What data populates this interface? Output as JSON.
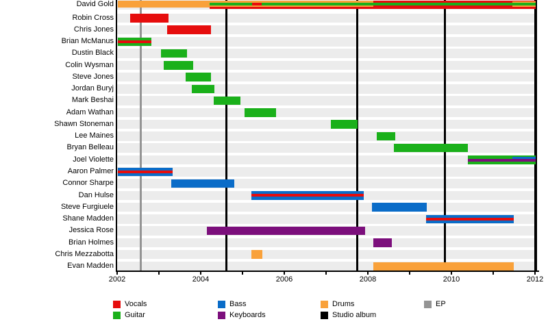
{
  "chart_data": {
    "type": "timeline",
    "title": "Band members timeline (gantt-style, rows = members, bars = tenure by instrument)",
    "x_axis": {
      "start": 2002,
      "end": 2012,
      "tick_interval_years": 1,
      "labeled_ticks": [
        "2002",
        "2004",
        "2006",
        "2008",
        "2010",
        "2012"
      ]
    },
    "colors": {
      "vocals": "#e60d0d",
      "guitar": "#1ab01a",
      "bass": "#0a6cc8",
      "keyboards": "#7c0f7c",
      "drums": "#f9a13a",
      "studio_album": "#000000",
      "ep": "#949494"
    },
    "legend": [
      {
        "label": "Vocals",
        "role": "vocals"
      },
      {
        "label": "Guitar",
        "role": "guitar"
      },
      {
        "label": "Bass",
        "role": "bass"
      },
      {
        "label": "Keyboards",
        "role": "keyboards"
      },
      {
        "label": "Drums",
        "role": "drums"
      },
      {
        "label": "Studio album",
        "role": "studio_album"
      },
      {
        "label": "EP",
        "role": "ep"
      }
    ],
    "releases": [
      {
        "kind": "ep",
        "year": 2002.56
      },
      {
        "kind": "studio_album",
        "year": 2004.61
      },
      {
        "kind": "studio_album",
        "year": 2007.74
      },
      {
        "kind": "studio_album",
        "year": 2009.85
      },
      {
        "kind": "studio_album",
        "year": 2012.02
      }
    ],
    "members": [
      {
        "name": "David Gold",
        "bars": [
          {
            "role": "drums",
            "from": 2002.02,
            "till": 2004.21,
            "layer": "full10"
          },
          {
            "role": "vocals",
            "from": 2004.21,
            "till": 2012.02,
            "layer": "full"
          },
          {
            "role": "drums",
            "from": 2004.21,
            "till": 2008.13,
            "layer": "top"
          },
          {
            "role": "drums",
            "from": 2004.21,
            "till": 2008.13,
            "layer": "bottom"
          },
          {
            "role": "drums",
            "from": 2011.46,
            "till": 2012.02,
            "layer": "top2"
          },
          {
            "role": "drums",
            "from": 2011.46,
            "till": 2012.02,
            "layer": "bottom"
          },
          {
            "role": "guitar",
            "from": 2004.21,
            "till": 2012.02,
            "layer": "mid"
          },
          {
            "role": "vocals",
            "from": 2005.23,
            "till": 2005.46,
            "layer": "mid"
          }
        ]
      },
      {
        "name": "Robin Cross",
        "bars": [
          {
            "role": "vocals",
            "from": 2002.31,
            "till": 2003.23,
            "layer": "full"
          }
        ]
      },
      {
        "name": "Chris Jones",
        "bars": [
          {
            "role": "vocals",
            "from": 2003.2,
            "till": 2004.25,
            "layer": "full"
          }
        ]
      },
      {
        "name": "Brian McManus",
        "bars": [
          {
            "role": "guitar",
            "from": 2002.02,
            "till": 2002.82,
            "layer": "full"
          },
          {
            "role": "vocals",
            "from": 2002.02,
            "till": 2002.82,
            "layer": "stripe"
          }
        ]
      },
      {
        "name": "Dustin Black",
        "bars": [
          {
            "role": "guitar",
            "from": 2003.05,
            "till": 2003.67,
            "layer": "full"
          }
        ]
      },
      {
        "name": "Colin Wysman",
        "bars": [
          {
            "role": "guitar",
            "from": 2003.11,
            "till": 2003.82,
            "layer": "full"
          }
        ]
      },
      {
        "name": "Steve Jones",
        "bars": [
          {
            "role": "guitar",
            "from": 2003.64,
            "till": 2004.25,
            "layer": "full"
          }
        ]
      },
      {
        "name": "Jordan Buryj",
        "bars": [
          {
            "role": "guitar",
            "from": 2003.79,
            "till": 2004.33,
            "layer": "full"
          }
        ]
      },
      {
        "name": "Mark Beshai",
        "bars": [
          {
            "role": "guitar",
            "from": 2004.31,
            "till": 2004.95,
            "layer": "full"
          }
        ]
      },
      {
        "name": "Adam Wathan",
        "bars": [
          {
            "role": "guitar",
            "from": 2005.05,
            "till": 2005.8,
            "layer": "full"
          }
        ]
      },
      {
        "name": "Shawn Stoneman",
        "bars": [
          {
            "role": "guitar",
            "from": 2007.11,
            "till": 2007.76,
            "layer": "full"
          }
        ]
      },
      {
        "name": "Lee Maines",
        "bars": [
          {
            "role": "guitar",
            "from": 2008.21,
            "till": 2008.66,
            "layer": "full"
          }
        ]
      },
      {
        "name": "Bryan Belleau",
        "bars": [
          {
            "role": "guitar",
            "from": 2008.62,
            "till": 2010.39,
            "layer": "full"
          }
        ]
      },
      {
        "name": "Joel Violette",
        "bars": [
          {
            "role": "guitar",
            "from": 2010.39,
            "till": 2012.02,
            "layer": "full"
          },
          {
            "role": "keyboards",
            "from": 2010.39,
            "till": 2012.02,
            "layer": "low"
          },
          {
            "role": "bass",
            "from": 2011.46,
            "till": 2012.02,
            "layer": "upper"
          }
        ]
      },
      {
        "name": "Aaron Palmer",
        "bars": [
          {
            "role": "bass",
            "from": 2002.02,
            "till": 2003.33,
            "layer": "full"
          },
          {
            "role": "vocals",
            "from": 2002.02,
            "till": 2003.33,
            "layer": "stripe"
          }
        ]
      },
      {
        "name": "Connor Sharpe",
        "bars": [
          {
            "role": "bass",
            "from": 2003.3,
            "till": 2004.8,
            "layer": "full"
          }
        ]
      },
      {
        "name": "Dan Hulse",
        "bars": [
          {
            "role": "bass",
            "from": 2005.21,
            "till": 2007.9,
            "layer": "full"
          },
          {
            "role": "vocals",
            "from": 2005.21,
            "till": 2007.9,
            "layer": "stripe"
          }
        ]
      },
      {
        "name": "Steve Furgiuele",
        "bars": [
          {
            "role": "bass",
            "from": 2008.1,
            "till": 2009.41,
            "layer": "full"
          }
        ]
      },
      {
        "name": "Shane Madden",
        "bars": [
          {
            "role": "bass",
            "from": 2009.39,
            "till": 2011.49,
            "layer": "full"
          },
          {
            "role": "vocals",
            "from": 2009.39,
            "till": 2011.49,
            "layer": "stripe"
          }
        ]
      },
      {
        "name": "Jessica Rose",
        "bars": [
          {
            "role": "keyboards",
            "from": 2004.15,
            "till": 2007.93,
            "layer": "full"
          }
        ]
      },
      {
        "name": "Brian Holmes",
        "bars": [
          {
            "role": "keyboards",
            "from": 2008.13,
            "till": 2008.57,
            "layer": "full"
          }
        ]
      },
      {
        "name": "Chris Mezzabotta",
        "bars": [
          {
            "role": "drums",
            "from": 2005.21,
            "till": 2005.48,
            "layer": "full"
          }
        ]
      },
      {
        "name": "Evan Madden",
        "bars": [
          {
            "role": "drums",
            "from": 2008.13,
            "till": 2011.49,
            "layer": "full"
          }
        ]
      }
    ]
  }
}
